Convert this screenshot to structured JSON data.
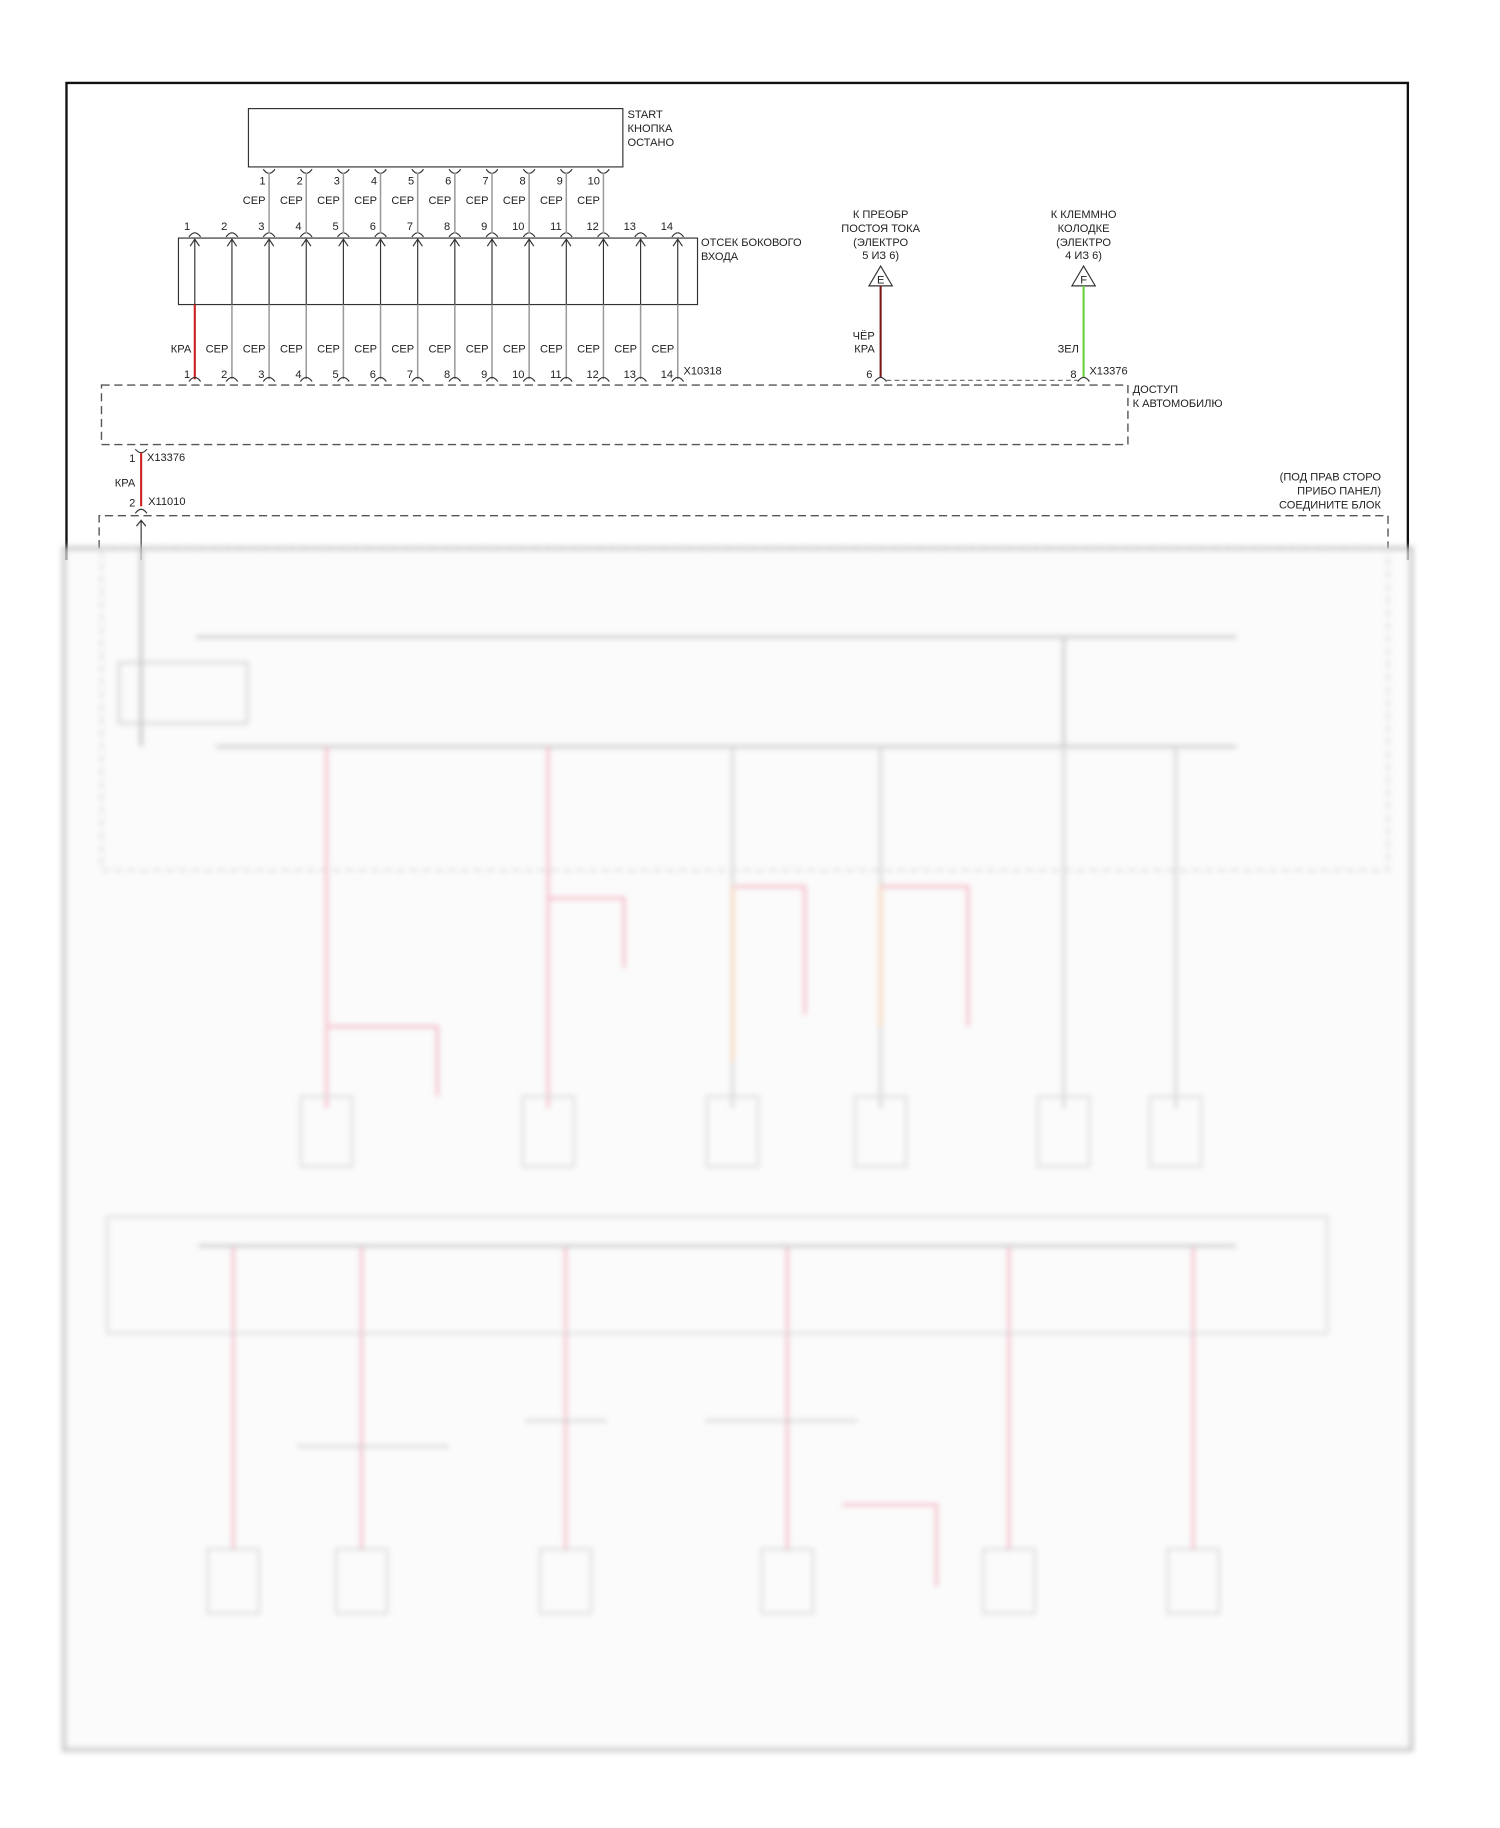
{
  "start_button": {
    "label_lines": [
      "START",
      "КНОПКА",
      "ОСТАНО"
    ],
    "pins": [
      "1",
      "2",
      "3",
      "4",
      "5",
      "6",
      "7",
      "8",
      "9",
      "10"
    ],
    "wire_colors": [
      "СЕР",
      "СЕР",
      "СЕР",
      "СЕР",
      "СЕР",
      "СЕР",
      "СЕР",
      "СЕР",
      "СЕР",
      "СЕР"
    ]
  },
  "side_entry": {
    "label_lines": [
      "ОТСЕК БОКОВОГО",
      "ВХОДА"
    ],
    "pins": [
      "1",
      "2",
      "3",
      "4",
      "5",
      "6",
      "7",
      "8",
      "9",
      "10",
      "11",
      "12",
      "13",
      "14"
    ]
  },
  "connector_x10318": {
    "id": "X10318",
    "pins": [
      "1",
      "2",
      "3",
      "4",
      "5",
      "6",
      "7",
      "8",
      "9",
      "10",
      "11",
      "12",
      "13",
      "14"
    ],
    "wire_colors": [
      "КРА",
      "СЕР",
      "СЕР",
      "СЕР",
      "СЕР",
      "СЕР",
      "СЕР",
      "СЕР",
      "СЕР",
      "СЕР",
      "СЕР",
      "СЕР",
      "СЕР",
      "СЕР"
    ]
  },
  "ref_e": {
    "letter": "E",
    "label_lines": [
      "К ПРЕОБР",
      "ПОСТОЯ ТОКА",
      "(ЭЛЕКТРО",
      "5 ИЗ 6)"
    ],
    "wire_color_lines": [
      "ЧЁР",
      "КРА"
    ],
    "pin": "6"
  },
  "ref_f": {
    "letter": "F",
    "label_lines": [
      "К КЛЕММНО",
      "КОЛОДКЕ",
      "(ЭЛЕКТРО",
      "4 ИЗ 6)"
    ],
    "wire_color": "ЗЕЛ",
    "pin": "8",
    "connector": "X13376"
  },
  "vehicle_access": {
    "label_lines": [
      "ДОСТУП",
      "К АВТОМОБИЛЮ"
    ]
  },
  "link_wire": {
    "top_pin": "1",
    "top_connector": "X13376",
    "color": "КРА",
    "bottom_pin": "2",
    "bottom_connector": "X11010"
  },
  "junction_block": {
    "label_lines": [
      "(ПОД ПРАВ СТОРО",
      "ПРИБО ПАНЕЛ)",
      "СОЕДИНИТЕ БЛОК"
    ]
  },
  "colors": {
    "red": "#cc1f1f",
    "dark_red": "#7a1a1a",
    "green": "#66d23a",
    "gray_wire": "#9a9a9a",
    "pink": "#ef9fb0",
    "orange": "#f2c08f"
  }
}
